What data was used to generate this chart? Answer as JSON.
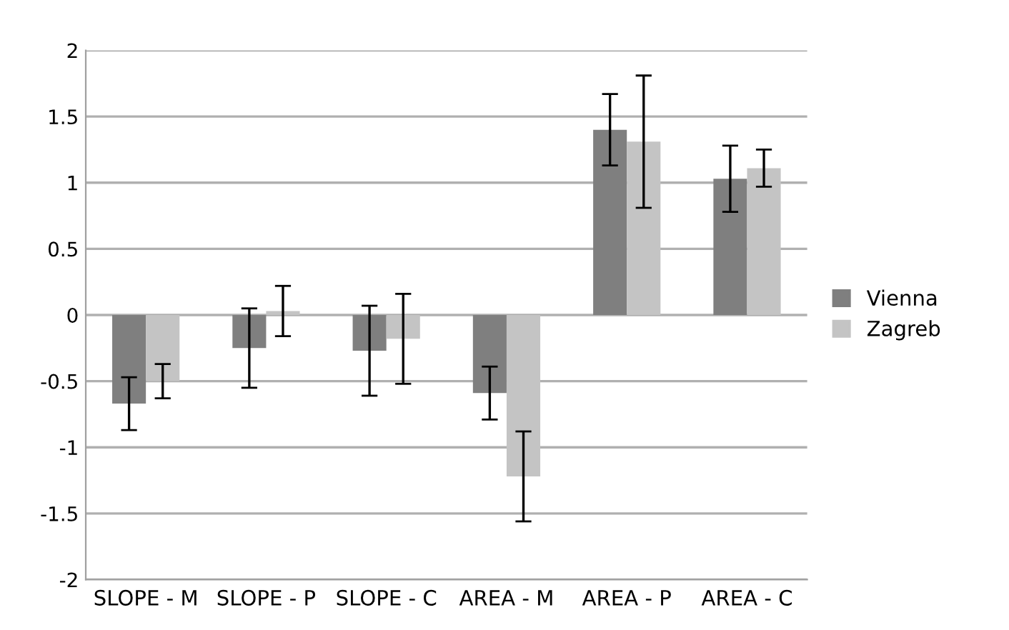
{
  "chart_data": {
    "type": "bar",
    "categories": [
      "SLOPE - M",
      "SLOPE - P",
      "SLOPE - C",
      "AREA - M",
      "AREA - P",
      "AREA - C"
    ],
    "series": [
      {
        "name": "Vienna",
        "color": "#7f7f7f",
        "values": [
          -0.67,
          -0.25,
          -0.27,
          -0.59,
          1.4,
          1.03
        ],
        "errors": [
          0.2,
          0.3,
          0.34,
          0.2,
          0.27,
          0.25
        ]
      },
      {
        "name": "Zagreb",
        "color": "#c4c4c4",
        "values": [
          -0.5,
          0.03,
          -0.18,
          -1.22,
          1.31,
          1.11
        ],
        "errors": [
          0.13,
          0.19,
          0.34,
          0.34,
          0.5,
          0.14
        ]
      }
    ],
    "ylim": [
      -2,
      2
    ],
    "yticks": [
      -2,
      -1.5,
      -1,
      -0.5,
      0,
      0.5,
      1,
      1.5,
      2
    ],
    "grid": "y",
    "legend": "right"
  }
}
